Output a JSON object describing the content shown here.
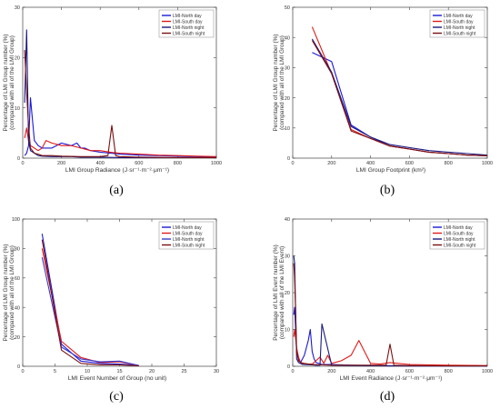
{
  "chart_data": [
    {
      "type": "line",
      "panel_label": "(a)",
      "xlabel": "LMI Group Radiance (J·sr⁻¹·m⁻²·μm⁻¹)",
      "ylabel_lines": [
        "Percentage of LMI Group number (%)",
        "(compared with all of the LMI Group)"
      ],
      "xlim": [
        0,
        1000
      ],
      "ylim": [
        0,
        30
      ],
      "xticks": [
        0,
        200,
        400,
        600,
        800,
        1000
      ],
      "yticks": [
        0,
        10,
        20,
        30
      ],
      "legend_position": "top-right",
      "series": [
        {
          "name": "LMI-North day",
          "color": "#1a1ad6",
          "x": [
            10,
            20,
            30,
            40,
            60,
            80,
            100,
            150,
            200,
            250,
            280,
            300,
            320,
            350,
            400,
            450,
            500,
            600,
            700,
            800,
            900,
            1000
          ],
          "y": [
            0.5,
            1.0,
            2.5,
            12.0,
            3.5,
            2.5,
            2.0,
            2.0,
            3.0,
            2.5,
            3.0,
            2.0,
            2.0,
            1.5,
            1.2,
            1.0,
            0.8,
            0.6,
            0.5,
            0.4,
            0.3,
            0.2
          ]
        },
        {
          "name": "LMI-South day",
          "color": "#e01a1a",
          "x": [
            10,
            20,
            30,
            40,
            60,
            80,
            100,
            120,
            150,
            200,
            250,
            300,
            350,
            400,
            450,
            500,
            600,
            700,
            800,
            900,
            1000
          ],
          "y": [
            4.0,
            6.0,
            3.5,
            2.5,
            2.0,
            1.5,
            2.0,
            3.5,
            3.0,
            2.5,
            2.5,
            2.0,
            1.5,
            1.5,
            1.2,
            1.0,
            0.8,
            0.6,
            0.5,
            0.4,
            0.3
          ]
        },
        {
          "name": "LMI-North night",
          "color": "#1a1a80",
          "x": [
            10,
            20,
            30,
            40,
            60,
            80,
            100,
            150,
            200,
            250,
            300,
            350,
            400,
            500,
            600,
            800,
            1000
          ],
          "y": [
            11.0,
            25.5,
            3.5,
            1.5,
            1.0,
            0.5,
            0.4,
            0.3,
            0.3,
            0.3,
            0.2,
            0.2,
            0.2,
            0.1,
            0.1,
            0.1,
            0.1
          ]
        },
        {
          "name": "LMI-South night",
          "color": "#7a1010",
          "x": [
            10,
            20,
            30,
            40,
            60,
            80,
            100,
            150,
            200,
            300,
            400,
            440,
            460,
            480,
            500,
            600,
            800,
            1000
          ],
          "y": [
            21.5,
            13.0,
            6.5,
            2.0,
            1.0,
            0.8,
            0.5,
            0.5,
            0.4,
            0.3,
            0.3,
            0.5,
            6.5,
            0.5,
            0.3,
            0.2,
            0.1,
            0.1
          ]
        }
      ]
    },
    {
      "type": "line",
      "panel_label": "(b)",
      "xlabel": "LMI Group Footprint (km²)",
      "ylabel_lines": [
        "Percentage of LMI Group number (%)",
        "(compared with all of the LMI Group)"
      ],
      "xlim": [
        0,
        1000
      ],
      "ylim": [
        0,
        50
      ],
      "xticks": [
        0,
        200,
        400,
        600,
        800,
        1000
      ],
      "yticks": [
        0,
        10,
        20,
        30,
        40,
        50
      ],
      "legend_position": "top-right",
      "series": [
        {
          "name": "LMI-North day",
          "color": "#1a1ad6",
          "x": [
            100,
            200,
            300,
            400,
            500,
            600,
            700,
            800,
            900,
            1000
          ],
          "y": [
            35.0,
            32.0,
            11.0,
            7.0,
            4.0,
            3.0,
            2.0,
            1.5,
            1.0,
            0.8
          ]
        },
        {
          "name": "LMI-South day",
          "color": "#e01a1a",
          "x": [
            100,
            200,
            300,
            400,
            500,
            600,
            700,
            800,
            900,
            1000
          ],
          "y": [
            43.5,
            28.0,
            9.5,
            6.5,
            4.0,
            3.0,
            2.0,
            1.5,
            1.0,
            0.8
          ]
        },
        {
          "name": "LMI-North night",
          "color": "#1a1a80",
          "x": [
            100,
            200,
            300,
            400,
            500,
            600,
            700,
            800,
            900,
            1000
          ],
          "y": [
            39.5,
            28.5,
            10.5,
            7.0,
            4.5,
            3.5,
            2.5,
            2.0,
            1.5,
            1.0
          ]
        },
        {
          "name": "LMI-South night",
          "color": "#7a1010",
          "x": [
            100,
            200,
            300,
            400,
            500,
            600,
            700,
            800,
            900,
            1000
          ],
          "y": [
            39.0,
            28.0,
            9.0,
            6.5,
            4.0,
            3.0,
            2.0,
            1.5,
            1.0,
            0.8
          ]
        }
      ]
    },
    {
      "type": "line",
      "panel_label": "(c)",
      "xlabel": "LMI Event Number of Group (no unit)",
      "ylabel_lines": [
        "Percentage of LMI Group number (%)",
        "(compared with all of the LMI Group)"
      ],
      "xlim": [
        0,
        30
      ],
      "ylim": [
        0,
        100
      ],
      "xticks": [
        0,
        5,
        10,
        15,
        20,
        25,
        30
      ],
      "yticks": [
        0,
        20,
        40,
        60,
        80,
        100
      ],
      "legend_position": "top-right",
      "series": [
        {
          "name": "LMI-North day",
          "color": "#1a1ad6",
          "x": [
            3,
            6,
            9,
            12,
            15,
            18
          ],
          "y": [
            90.0,
            15.0,
            3.5,
            2.0,
            1.5,
            0.5
          ]
        },
        {
          "name": "LMI-South day",
          "color": "#e01a1a",
          "x": [
            3,
            6,
            9,
            12,
            15,
            18
          ],
          "y": [
            80.0,
            17.0,
            6.0,
            2.5,
            3.0,
            0.5
          ]
        },
        {
          "name": "LMI-North night",
          "color": "#3a3acc",
          "x": [
            3,
            6,
            9,
            12,
            15,
            18
          ],
          "y": [
            74.0,
            13.0,
            5.0,
            3.0,
            3.5,
            0.5
          ]
        },
        {
          "name": "LMI-South night",
          "color": "#7a1010",
          "x": [
            3,
            6,
            9,
            12,
            15,
            18
          ],
          "y": [
            86.0,
            11.0,
            2.0,
            1.0,
            1.0,
            0.3
          ]
        }
      ]
    },
    {
      "type": "line",
      "panel_label": "(d)",
      "xlabel": "LMI Event Radiance (J·sr⁻¹·m⁻²·μm⁻¹)",
      "ylabel_lines": [
        "Percentage of LMI Event number (%)",
        "(compared with all of the LMI Event)"
      ],
      "xlim": [
        0,
        1000
      ],
      "ylim": [
        0,
        40
      ],
      "xticks": [
        0,
        200,
        400,
        600,
        800,
        1000
      ],
      "yticks": [
        0,
        10,
        20,
        30,
        40
      ],
      "legend_position": "top-right",
      "series": [
        {
          "name": "LMI-North day",
          "color": "#1a1ad6",
          "x": [
            5,
            10,
            20,
            30,
            40,
            60,
            80,
            90,
            100,
            110,
            120,
            150,
            200,
            300,
            400,
            600,
            800,
            1000
          ],
          "y": [
            14.0,
            16.0,
            4.0,
            2.0,
            1.0,
            3.0,
            7.0,
            10.0,
            4.0,
            2.0,
            1.0,
            0.5,
            0.5,
            0.3,
            0.2,
            0.1,
            0.1,
            0.1
          ]
        },
        {
          "name": "LMI-South day",
          "color": "#e01a1a",
          "x": [
            5,
            10,
            20,
            30,
            40,
            60,
            80,
            100,
            140,
            160,
            180,
            200,
            250,
            300,
            340,
            400,
            450,
            500,
            600,
            800,
            1000
          ],
          "y": [
            8.0,
            10.0,
            5.0,
            2.5,
            1.0,
            0.8,
            0.6,
            0.6,
            2.5,
            0.8,
            3.0,
            0.8,
            1.5,
            3.0,
            7.0,
            0.8,
            0.6,
            1.0,
            0.5,
            0.3,
            0.2
          ]
        },
        {
          "name": "LMI-North night",
          "color": "#1a1a80",
          "x": [
            5,
            10,
            20,
            30,
            50,
            100,
            120,
            140,
            150,
            200,
            300,
            500,
            800,
            1000
          ],
          "y": [
            30.0,
            28.0,
            2.0,
            1.0,
            0.5,
            0.4,
            0.3,
            0.3,
            11.5,
            0.3,
            0.2,
            0.1,
            0.1,
            0.1
          ]
        },
        {
          "name": "LMI-South night",
          "color": "#7a1010",
          "x": [
            5,
            10,
            15,
            20,
            30,
            50,
            100,
            200,
            300,
            480,
            500,
            520,
            600,
            800,
            1000
          ],
          "y": [
            28.0,
            24.0,
            15.0,
            4.0,
            1.5,
            0.8,
            0.5,
            0.3,
            0.3,
            0.3,
            6.0,
            0.3,
            0.2,
            0.1,
            0.1
          ]
        }
      ]
    }
  ]
}
